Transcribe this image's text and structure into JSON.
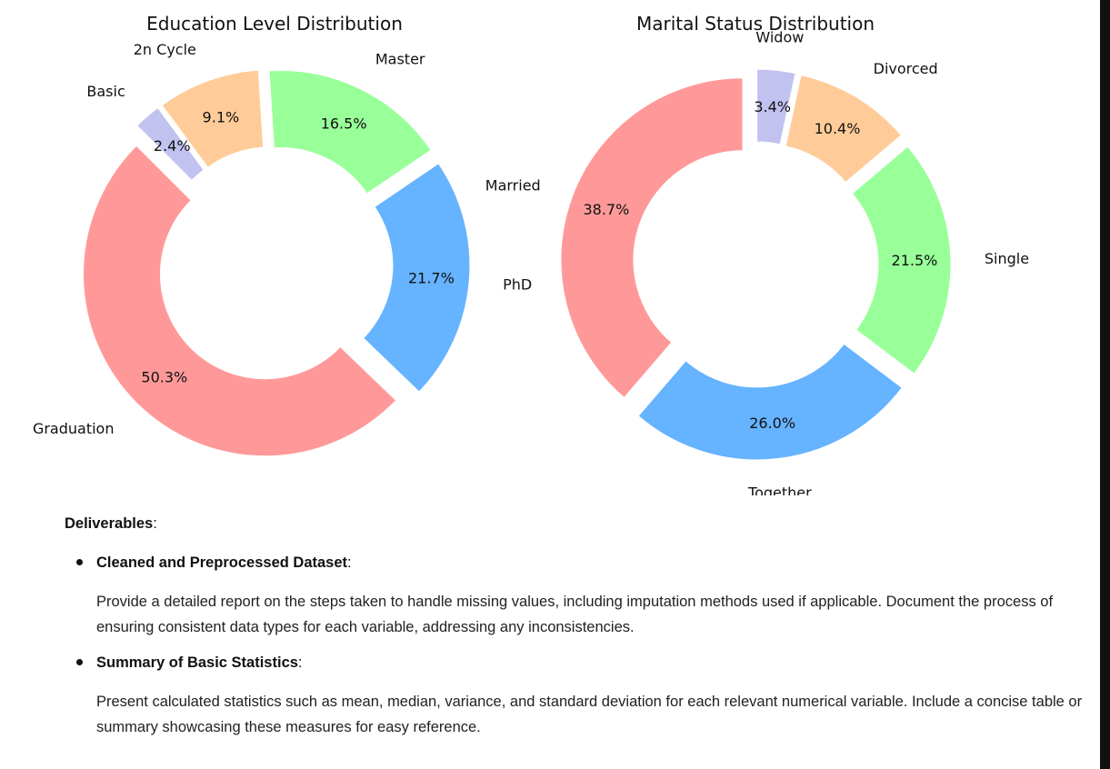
{
  "chart_data": [
    {
      "type": "pie",
      "title": "Education Level Distribution",
      "categories": [
        "Graduation",
        "PhD",
        "Master",
        "2n Cycle",
        "Basic"
      ],
      "values": [
        50.3,
        21.7,
        16.5,
        9.1,
        2.4
      ],
      "value_labels": [
        "50.3%",
        "21.7%",
        "16.5%",
        "9.1%",
        "2.4%"
      ],
      "colors": [
        "#ff9999",
        "#66b3ff",
        "#99ff99",
        "#ffcc99",
        "#c2c2f0"
      ],
      "donut": true,
      "exploded": true
    },
    {
      "type": "pie",
      "title": "Marital Status Distribution",
      "categories": [
        "Married",
        "Together",
        "Single",
        "Divorced",
        "Widow"
      ],
      "values": [
        38.7,
        26.0,
        21.5,
        10.4,
        3.4
      ],
      "value_labels": [
        "38.7%",
        "26.0%",
        "21.5%",
        "10.4%",
        "3.4%"
      ],
      "colors": [
        "#ff9999",
        "#66b3ff",
        "#99ff99",
        "#ffcc99",
        "#c2c2f0"
      ],
      "donut": true,
      "exploded": true
    }
  ],
  "deliverables": {
    "heading": "Deliverables",
    "heading_suffix": ":",
    "items": [
      {
        "title": "Cleaned and Preprocessed Dataset",
        "title_suffix": ":",
        "body": "Provide a detailed report on the steps taken to handle missing values, including imputation methods used if applicable. Document the process of ensuring consistent data types for each variable, addressing any inconsistencies."
      },
      {
        "title": "Summary of Basic Statistics",
        "title_suffix": ":",
        "body": "Present calculated statistics such as mean, median, variance, and standard deviation for each relevant numerical variable. Include a concise table or summary showcasing these measures for easy reference."
      }
    ]
  }
}
